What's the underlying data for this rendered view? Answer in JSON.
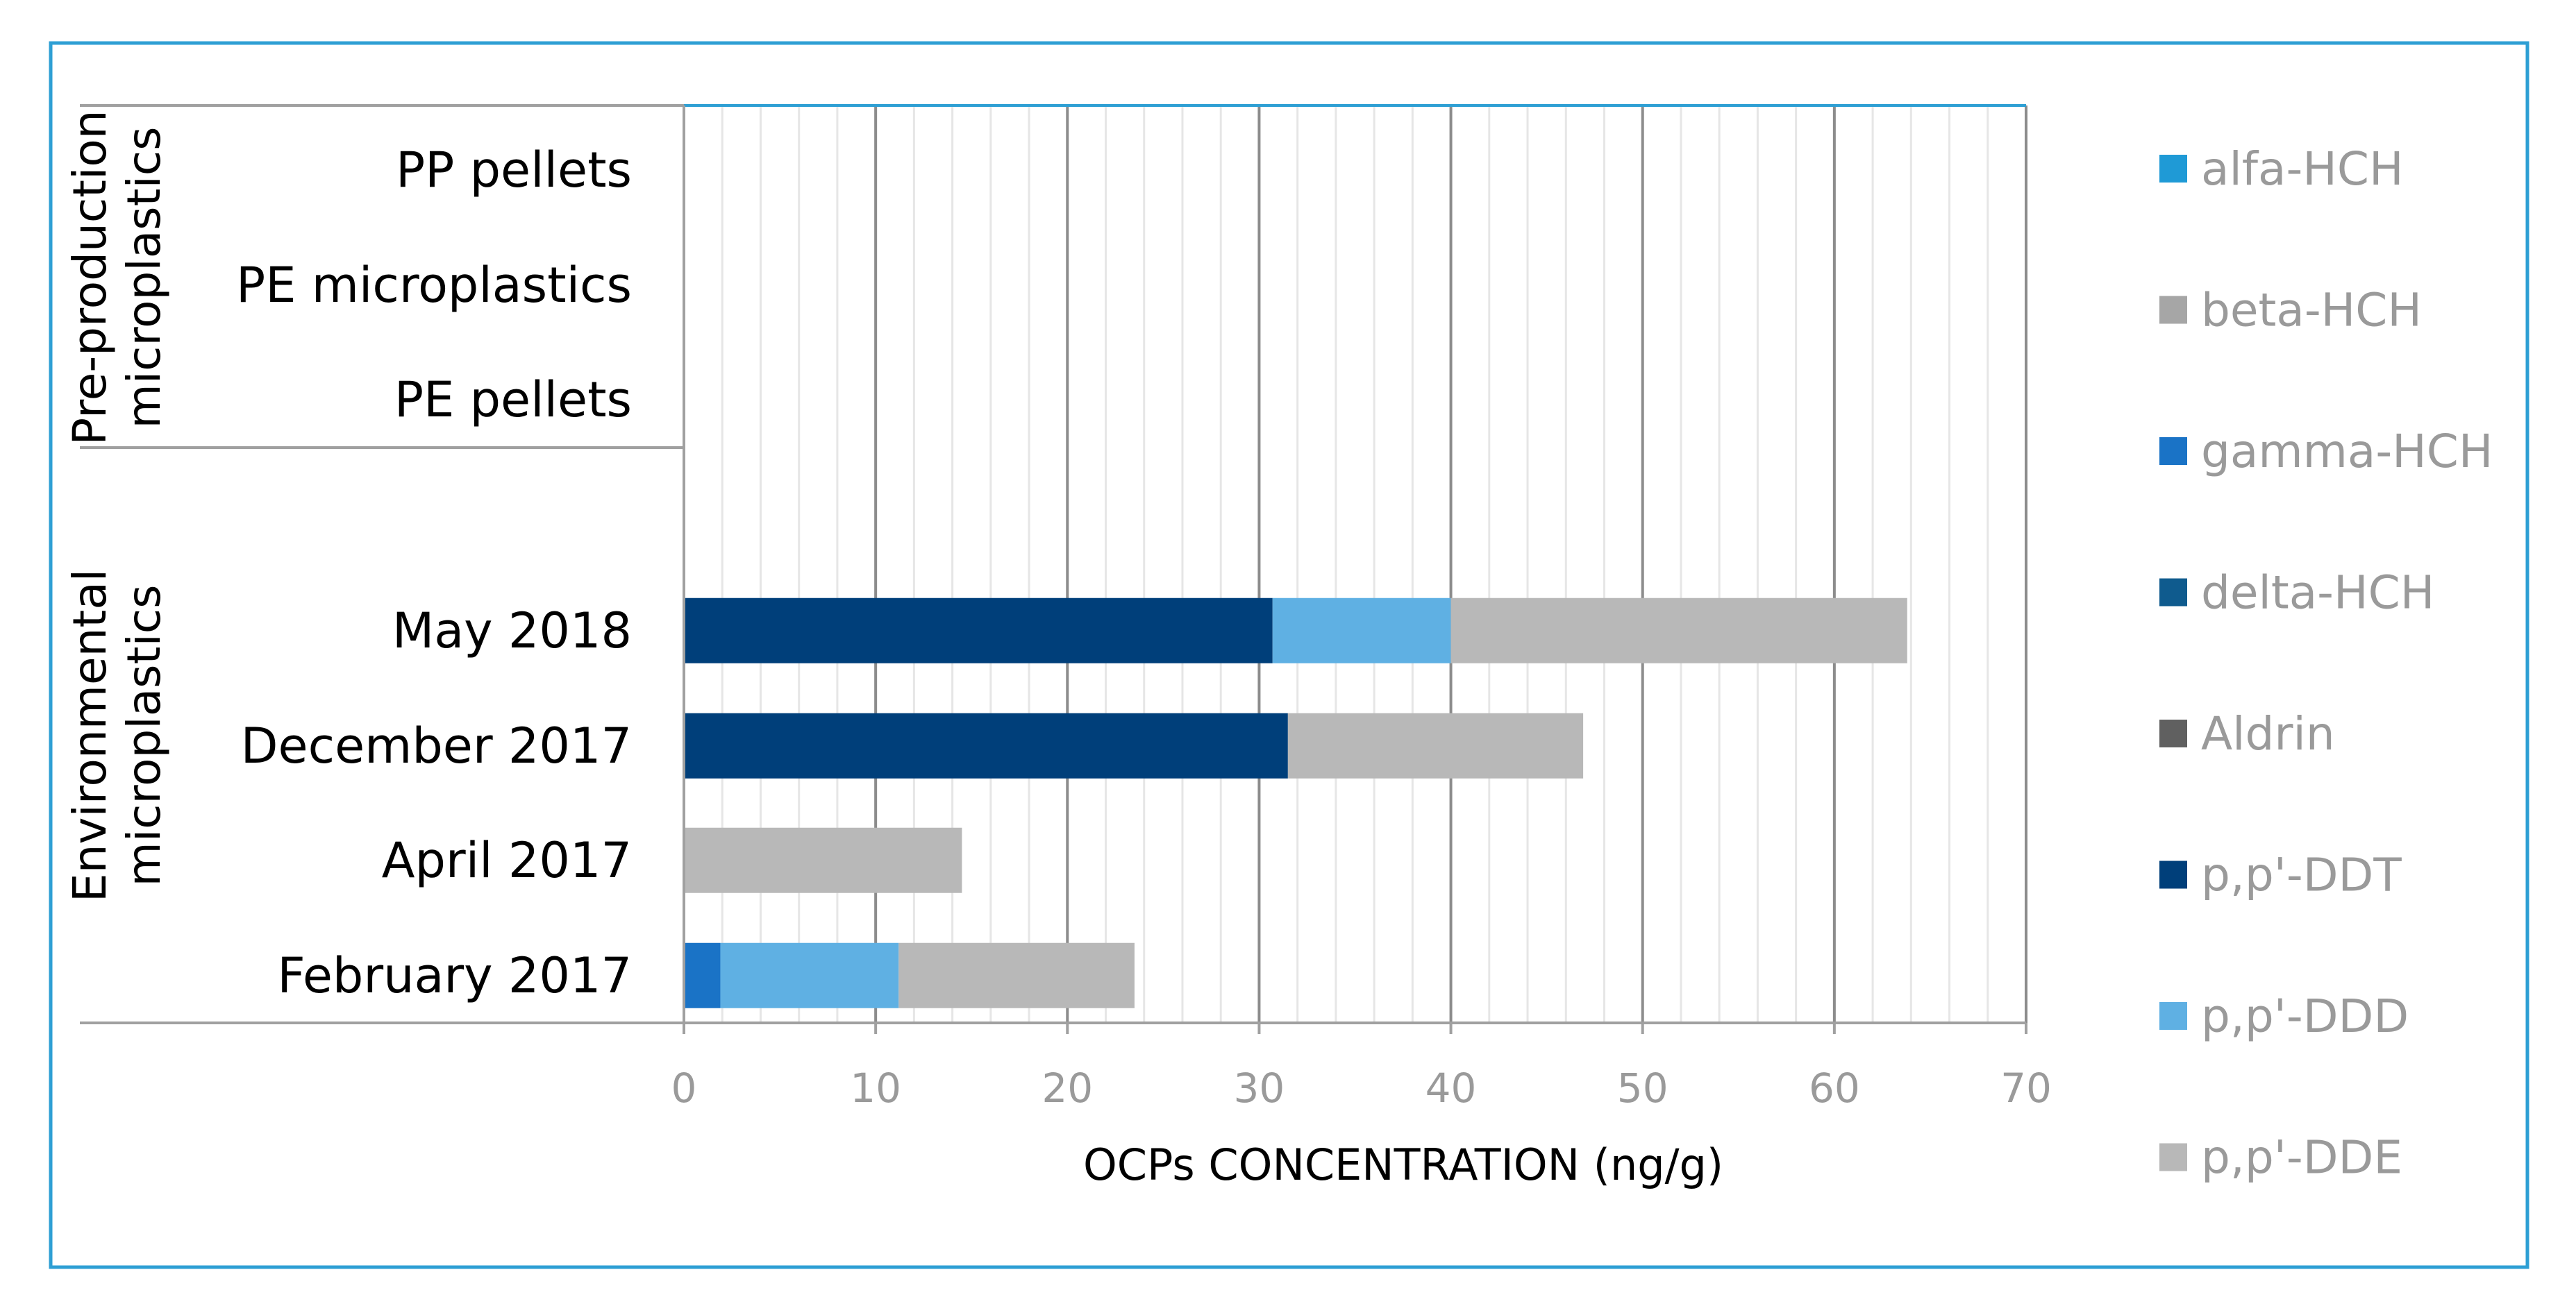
{
  "chart_data": {
    "type": "bar",
    "orientation": "horizontal",
    "stacked": true,
    "xlabel": "OCPs CONCENTRATION (ng/g)",
    "xlim": [
      0,
      70
    ],
    "xticks": [
      0,
      10,
      20,
      30,
      40,
      50,
      60,
      70
    ],
    "grid": true,
    "legend_position": "right",
    "groups": [
      {
        "label": "Pre-production microplastics",
        "line1": "Pre-production",
        "line2": "microplastics",
        "categories": [
          "PP pellets",
          "PE microplastics",
          "PE pellets"
        ]
      },
      {
        "label": "Environmental microplastics",
        "line1": "Environmental",
        "line2": "microplastics",
        "categories": [
          "May 2018",
          "December 2017",
          "April 2017",
          "February 2017"
        ]
      }
    ],
    "categories": [
      "PP pellets",
      "PE microplastics",
      "PE pellets",
      "",
      "May 2018",
      "December 2017",
      "April 2017",
      "February 2017"
    ],
    "series": [
      {
        "name": "alfa-HCH",
        "color": "#1f9ad6",
        "values": [
          0,
          0,
          0,
          null,
          0,
          0,
          0,
          0
        ]
      },
      {
        "name": "beta-HCH",
        "color": "#a6a6a6",
        "values": [
          0,
          0,
          0,
          null,
          0,
          0,
          0,
          0
        ]
      },
      {
        "name": "gamma-HCH",
        "color": "#1a73c6",
        "values": [
          0,
          0,
          0,
          null,
          0,
          0,
          0,
          1.9
        ]
      },
      {
        "name": "delta-HCH",
        "color": "#0f5b8e",
        "values": [
          0,
          0,
          0,
          null,
          0,
          0,
          0,
          0
        ]
      },
      {
        "name": "Aldrin",
        "color": "#606060",
        "values": [
          0,
          0,
          0,
          null,
          0,
          0,
          0,
          0
        ]
      },
      {
        "name": "p,p'-DDT",
        "color": "#003f7a",
        "values": [
          0,
          0,
          0,
          null,
          30.7,
          31.5,
          0,
          0
        ]
      },
      {
        "name": "p,p'-DDD",
        "color": "#5fb0e3",
        "values": [
          0,
          0,
          0,
          null,
          9.3,
          0,
          0,
          9.3
        ]
      },
      {
        "name": "p,p'-DDE",
        "color": "#b8b8b8",
        "values": [
          0,
          0,
          0,
          null,
          23.8,
          15.4,
          14.5,
          12.3
        ]
      }
    ]
  },
  "colors": {
    "frame": "#2e9fd4",
    "axis": "#a0a0a0",
    "major_grid": "#8c8c8c",
    "minor_grid": "#e6e6e6"
  }
}
